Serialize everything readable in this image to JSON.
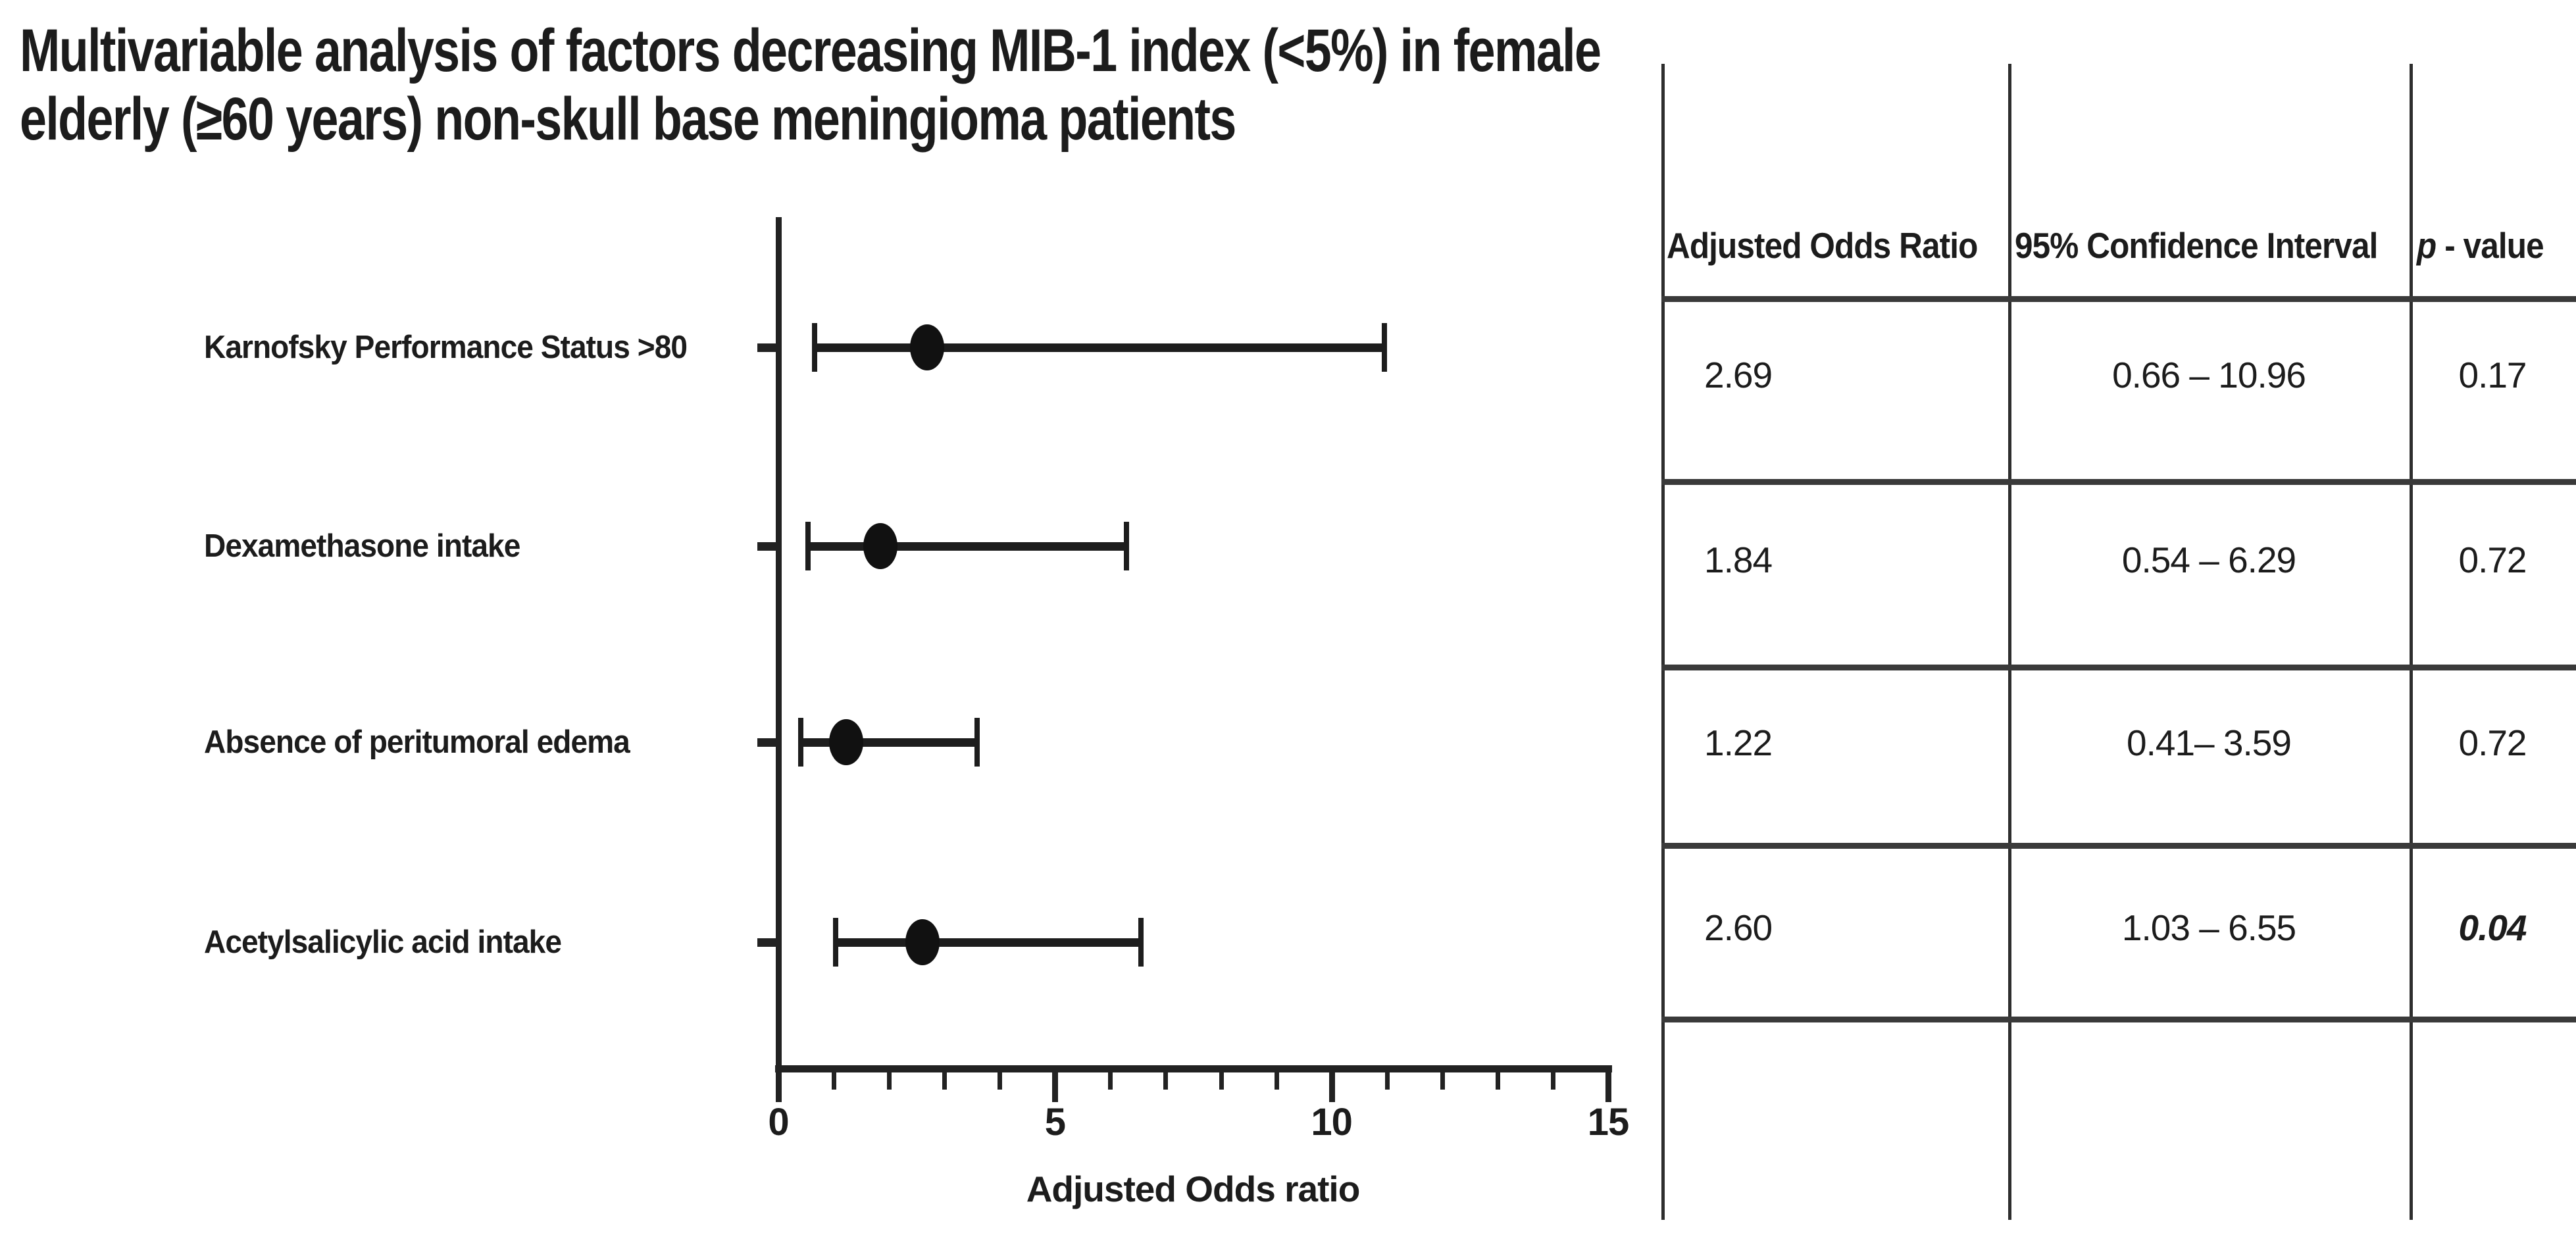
{
  "figure": {
    "title_line1": "Multivariable analysis of factors decreasing MIB-1 index (<5%) in female",
    "title_line2": "elderly (≥60 years) non-skull base meningioma patients"
  },
  "chart_data": {
    "type": "scatter",
    "variant": "forest-plot",
    "title": "Multivariable analysis of factors decreasing MIB-1 index (<5%) in female elderly (≥60 years) non-skull base meningioma patients",
    "xlabel": "Adjusted Odds ratio",
    "xlim": [
      0,
      15
    ],
    "x_major_ticks": [
      0,
      5,
      10,
      15
    ],
    "x_minor_step": 1,
    "grid": false,
    "marker_style": "black-ellipse-with-error-bars",
    "categories": [
      "Karnofsky Performance Status >80",
      "Dexamethasone intake",
      "Absence of peritumoral edema",
      "Acetylsalicylic acid intake"
    ],
    "points": [
      {
        "label": "Karnofsky Performance Status >80",
        "odds_ratio": 2.69,
        "ci_low": 0.66,
        "ci_high": 10.96,
        "p_value": "0.17"
      },
      {
        "label": "Dexamethasone intake",
        "odds_ratio": 1.84,
        "ci_low": 0.54,
        "ci_high": 6.29,
        "p_value": "0.72"
      },
      {
        "label": "Absence of peritumoral edema",
        "odds_ratio": 1.22,
        "ci_low": 0.41,
        "ci_high": 3.59,
        "p_value": "0.72"
      },
      {
        "label": "Acetylsalicylic acid intake",
        "odds_ratio": 2.6,
        "ci_low": 1.03,
        "ci_high": 6.55,
        "p_value": "0.04"
      }
    ]
  },
  "table": {
    "headers": {
      "col1": "Adjusted Odds Ratio",
      "col2": "95% Confidence Interval",
      "col3_italic": "p",
      "col3_rest": " - value"
    },
    "rows": [
      {
        "odds_ratio": "2.69",
        "ci": "0.66 – 10.96",
        "p": "0.17",
        "p_emphasis": false
      },
      {
        "odds_ratio": "1.84",
        "ci": "0.54 – 6.29",
        "p": "0.72",
        "p_emphasis": false
      },
      {
        "odds_ratio": "1.22",
        "ci": "0.41– 3.59",
        "p": "0.72",
        "p_emphasis": false
      },
      {
        "odds_ratio": "2.60",
        "ci": "1.03 – 6.55",
        "p": "0.04",
        "p_emphasis": true
      }
    ]
  }
}
